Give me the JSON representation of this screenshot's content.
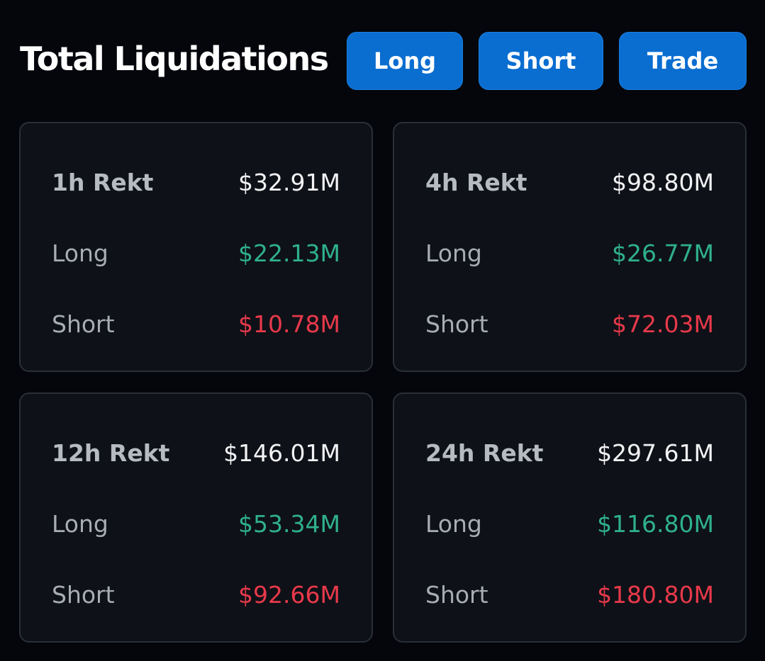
{
  "header": {
    "title": "Total Liquidations",
    "buttons": [
      "Long",
      "Short",
      "Trade"
    ]
  },
  "cards": [
    {
      "rows": [
        {
          "label": "1h Rekt",
          "value": "$32.91M"
        },
        {
          "label": "Long",
          "value": "$22.13M"
        },
        {
          "label": "Short",
          "value": "$10.78M"
        }
      ]
    },
    {
      "rows": [
        {
          "label": "4h Rekt",
          "value": "$98.80M"
        },
        {
          "label": "Long",
          "value": "$26.77M"
        },
        {
          "label": "Short",
          "value": "$72.03M"
        }
      ]
    },
    {
      "rows": [
        {
          "label": "12h Rekt",
          "value": "$146.01M"
        },
        {
          "label": "Long",
          "value": "$53.34M"
        },
        {
          "label": "Short",
          "value": "$92.66M"
        }
      ]
    },
    {
      "rows": [
        {
          "label": "24h Rekt",
          "value": "$297.61M"
        },
        {
          "label": "Long",
          "value": "$116.80M"
        },
        {
          "label": "Short",
          "value": "$180.80M"
        }
      ]
    }
  ]
}
